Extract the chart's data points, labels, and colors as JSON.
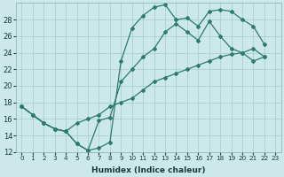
{
  "xlabel": "Humidex (Indice chaleur)",
  "background_color": "#cce8e8",
  "grid_color": "#aacece",
  "line_color": "#2d7a6e",
  "x_values": [
    0,
    1,
    2,
    3,
    4,
    5,
    6,
    7,
    8,
    9,
    10,
    11,
    12,
    13,
    14,
    15,
    16,
    17,
    18,
    19,
    20,
    21,
    22,
    23
  ],
  "line_top": [
    17.5,
    16.5,
    15.5,
    14.8,
    14.5,
    13.0,
    12.2,
    12.5,
    13.2,
    23.0,
    27.0,
    28.5,
    29.5,
    29.8,
    28.0,
    28.2,
    27.2,
    29.0,
    29.2,
    29.0,
    28.0,
    27.2,
    25.0,
    null
  ],
  "line_mid": [
    17.5,
    16.5,
    15.5,
    14.8,
    14.5,
    13.0,
    12.2,
    15.8,
    16.2,
    20.5,
    22.0,
    23.5,
    24.5,
    26.5,
    27.5,
    26.5,
    25.5,
    27.8,
    26.0,
    24.5,
    24.0,
    23.0,
    23.5,
    null
  ],
  "line_bot": [
    17.5,
    16.5,
    15.5,
    14.8,
    14.5,
    15.5,
    16.0,
    16.5,
    17.5,
    18.0,
    18.5,
    19.5,
    20.5,
    21.0,
    21.5,
    22.0,
    22.5,
    23.0,
    23.5,
    23.8,
    24.0,
    24.5,
    23.5,
    null
  ],
  "ylim": [
    12,
    30
  ],
  "xlim": [
    -0.5,
    23.5
  ],
  "yticks": [
    12,
    14,
    16,
    18,
    20,
    22,
    24,
    26,
    28
  ],
  "xticks": [
    0,
    1,
    2,
    3,
    4,
    5,
    6,
    7,
    8,
    9,
    10,
    11,
    12,
    13,
    14,
    15,
    16,
    17,
    18,
    19,
    20,
    21,
    22,
    23
  ],
  "ylabel_fontsize": 6,
  "xlabel_fontsize": 6.5,
  "tick_fontsize": 5.2
}
